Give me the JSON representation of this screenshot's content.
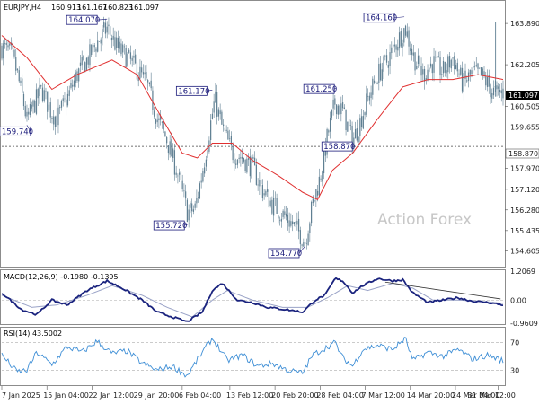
{
  "chart_data": {
    "type": "candlestick",
    "symbol_header": "EURJPY,H4",
    "ohlc": {
      "open": "160.913",
      "high": "161.167",
      "low": "160.823",
      "close": "161.097"
    },
    "current_price": "161.097",
    "support_level": "158.870",
    "watermark": "Action Forex",
    "colors": {
      "candle": "#5f7f92",
      "ma": "#e03030",
      "macd": "#1a237e",
      "rsi": "#3f8fd6",
      "callout": "#1a1a7a"
    },
    "price_axis": {
      "min": 154.0,
      "max": 164.7,
      "ticks": [
        "163.890",
        "162.205",
        "160.505",
        "159.655",
        "157.970",
        "157.120",
        "156.280",
        "155.435",
        "154.605"
      ]
    },
    "time_axis": {
      "range": [
        "7 Jan 2025",
        "31 Mar 12:00"
      ],
      "labels": [
        "7 Jan 2025",
        "15 Jan 04:00",
        "22 Jan 12:00",
        "29 Jan 20:00",
        "6 Feb 04:00",
        "13 Feb 12:00",
        "20 Feb 20:00",
        "28 Feb 04:00",
        "7 Mar 12:00",
        "14 Mar 20:00",
        "24 Mar 04:00",
        "31 Mar 12:00"
      ],
      "positions": [
        0,
        0.09,
        0.18,
        0.27,
        0.36,
        0.455,
        0.545,
        0.635,
        0.725,
        0.815,
        0.905,
        0.99
      ]
    },
    "swing_points": [
      {
        "label": "164.070",
        "t": 0.21,
        "price": 164.07,
        "kind": "high"
      },
      {
        "label": "159.740",
        "t": 0.05,
        "price": 159.74,
        "kind": "low"
      },
      {
        "label": "161.170",
        "t": 0.42,
        "price": 161.17,
        "kind": "high"
      },
      {
        "label": "155.720",
        "t": 0.375,
        "price": 155.72,
        "kind": "low"
      },
      {
        "label": "154.770",
        "t": 0.604,
        "price": 154.77,
        "kind": "low"
      },
      {
        "label": "161.250",
        "t": 0.667,
        "price": 161.25,
        "kind": "high"
      },
      {
        "label": "158.870",
        "t": 0.703,
        "price": 158.87,
        "kind": "low"
      },
      {
        "label": "164.160",
        "t": 0.803,
        "price": 164.16,
        "kind": "high"
      }
    ],
    "price_anchors": [
      [
        0.0,
        162.9
      ],
      [
        0.01,
        162.8
      ],
      [
        0.02,
        162.6
      ],
      [
        0.03,
        161.9
      ],
      [
        0.045,
        160.5
      ],
      [
        0.05,
        159.9
      ],
      [
        0.065,
        160.6
      ],
      [
        0.08,
        161.2
      ],
      [
        0.095,
        160.4
      ],
      [
        0.11,
        160.0
      ],
      [
        0.13,
        160.8
      ],
      [
        0.15,
        161.8
      ],
      [
        0.17,
        162.4
      ],
      [
        0.19,
        163.1
      ],
      [
        0.21,
        163.7
      ],
      [
        0.23,
        162.9
      ],
      [
        0.25,
        162.5
      ],
      [
        0.27,
        162.0
      ],
      [
        0.29,
        161.4
      ],
      [
        0.31,
        160.0
      ],
      [
        0.33,
        159.1
      ],
      [
        0.35,
        157.8
      ],
      [
        0.37,
        156.2
      ],
      [
        0.385,
        156.3
      ],
      [
        0.4,
        157.8
      ],
      [
        0.415,
        159.6
      ],
      [
        0.425,
        160.8
      ],
      [
        0.44,
        159.6
      ],
      [
        0.46,
        158.6
      ],
      [
        0.48,
        158.4
      ],
      [
        0.5,
        158.0
      ],
      [
        0.52,
        157.1
      ],
      [
        0.54,
        156.5
      ],
      [
        0.56,
        156.1
      ],
      [
        0.58,
        155.7
      ],
      [
        0.595,
        155.3
      ],
      [
        0.605,
        155.0
      ],
      [
        0.62,
        156.5
      ],
      [
        0.635,
        157.6
      ],
      [
        0.65,
        159.3
      ],
      [
        0.665,
        160.7
      ],
      [
        0.68,
        160.3
      ],
      [
        0.7,
        159.1
      ],
      [
        0.71,
        159.6
      ],
      [
        0.73,
        160.8
      ],
      [
        0.75,
        161.8
      ],
      [
        0.77,
        162.4
      ],
      [
        0.79,
        163.2
      ],
      [
        0.805,
        163.7
      ],
      [
        0.82,
        162.6
      ],
      [
        0.84,
        161.8
      ],
      [
        0.86,
        162.3
      ],
      [
        0.88,
        161.9
      ],
      [
        0.9,
        162.5
      ],
      [
        0.92,
        161.4
      ],
      [
        0.94,
        161.9
      ],
      [
        0.96,
        161.7
      ],
      [
        0.975,
        161.2
      ],
      [
        0.985,
        161.0
      ],
      [
        1.0,
        161.1
      ]
    ],
    "ma_anchors": [
      [
        0.0,
        163.4
      ],
      [
        0.05,
        162.5
      ],
      [
        0.1,
        161.2
      ],
      [
        0.15,
        161.8
      ],
      [
        0.22,
        162.4
      ],
      [
        0.27,
        161.8
      ],
      [
        0.32,
        160.0
      ],
      [
        0.36,
        158.6
      ],
      [
        0.39,
        158.4
      ],
      [
        0.42,
        159.0
      ],
      [
        0.46,
        159.0
      ],
      [
        0.5,
        158.3
      ],
      [
        0.55,
        157.7
      ],
      [
        0.6,
        157.0
      ],
      [
        0.63,
        156.7
      ],
      [
        0.66,
        157.9
      ],
      [
        0.7,
        158.6
      ],
      [
        0.75,
        160.0
      ],
      [
        0.8,
        161.3
      ],
      [
        0.85,
        161.6
      ],
      [
        0.9,
        161.6
      ],
      [
        0.95,
        161.8
      ],
      [
        1.0,
        161.6
      ]
    ],
    "macd": {
      "label": "MACD(12,26,9) -0.1980 -0.1395",
      "ticks": [
        "1.2069",
        "0.00",
        "-0.9609"
      ],
      "range": [
        -0.9609,
        1.2069
      ],
      "anchors": [
        [
          0.0,
          0.3
        ],
        [
          0.04,
          -0.4
        ],
        [
          0.07,
          -0.6
        ],
        [
          0.1,
          0.0
        ],
        [
          0.13,
          -0.2
        ],
        [
          0.17,
          0.4
        ],
        [
          0.21,
          0.8
        ],
        [
          0.24,
          0.5
        ],
        [
          0.28,
          0.0
        ],
        [
          0.31,
          -0.5
        ],
        [
          0.34,
          -0.7
        ],
        [
          0.37,
          -0.9
        ],
        [
          0.4,
          -0.5
        ],
        [
          0.42,
          0.4
        ],
        [
          0.44,
          0.7
        ],
        [
          0.47,
          0.0
        ],
        [
          0.5,
          -0.1
        ],
        [
          0.53,
          -0.3
        ],
        [
          0.57,
          -0.4
        ],
        [
          0.6,
          -0.5
        ],
        [
          0.625,
          0.0
        ],
        [
          0.645,
          0.2
        ],
        [
          0.665,
          0.9
        ],
        [
          0.68,
          0.8
        ],
        [
          0.7,
          0.3
        ],
        [
          0.72,
          0.6
        ],
        [
          0.75,
          0.9
        ],
        [
          0.78,
          0.8
        ],
        [
          0.8,
          0.85
        ],
        [
          0.82,
          0.3
        ],
        [
          0.85,
          -0.1
        ],
        [
          0.88,
          0.0
        ],
        [
          0.91,
          0.1
        ],
        [
          0.94,
          -0.05
        ],
        [
          0.97,
          -0.1
        ],
        [
          1.0,
          -0.2
        ]
      ],
      "signal_anchors": [
        [
          0.0,
          0.2
        ],
        [
          0.06,
          -0.3
        ],
        [
          0.11,
          -0.2
        ],
        [
          0.17,
          0.2
        ],
        [
          0.22,
          0.6
        ],
        [
          0.28,
          0.2
        ],
        [
          0.33,
          -0.3
        ],
        [
          0.38,
          -0.7
        ],
        [
          0.42,
          0.0
        ],
        [
          0.45,
          0.4
        ],
        [
          0.5,
          0.0
        ],
        [
          0.56,
          -0.3
        ],
        [
          0.61,
          -0.3
        ],
        [
          0.65,
          0.1
        ],
        [
          0.69,
          0.6
        ],
        [
          0.73,
          0.4
        ],
        [
          0.78,
          0.7
        ],
        [
          0.82,
          0.5
        ],
        [
          0.86,
          0.0
        ],
        [
          0.91,
          0.0
        ],
        [
          0.96,
          -0.05
        ],
        [
          1.0,
          -0.14
        ]
      ],
      "trendline": [
        [
          0.765,
          0.75
        ],
        [
          0.995,
          0.05
        ]
      ]
    },
    "rsi": {
      "label": "RSI(14) 43.5002",
      "ticks": [
        "70",
        "30"
      ],
      "range": [
        10,
        90
      ],
      "anchors": [
        [
          0.0,
          52
        ],
        [
          0.03,
          28
        ],
        [
          0.05,
          30
        ],
        [
          0.07,
          56
        ],
        [
          0.1,
          38
        ],
        [
          0.13,
          64
        ],
        [
          0.16,
          56
        ],
        [
          0.19,
          72
        ],
        [
          0.22,
          54
        ],
        [
          0.25,
          58
        ],
        [
          0.28,
          40
        ],
        [
          0.31,
          30
        ],
        [
          0.34,
          36
        ],
        [
          0.37,
          22
        ],
        [
          0.4,
          56
        ],
        [
          0.42,
          76
        ],
        [
          0.45,
          44
        ],
        [
          0.48,
          52
        ],
        [
          0.51,
          36
        ],
        [
          0.54,
          40
        ],
        [
          0.57,
          30
        ],
        [
          0.6,
          26
        ],
        [
          0.62,
          52
        ],
        [
          0.645,
          62
        ],
        [
          0.665,
          70
        ],
        [
          0.68,
          48
        ],
        [
          0.7,
          36
        ],
        [
          0.72,
          60
        ],
        [
          0.75,
          66
        ],
        [
          0.78,
          60
        ],
        [
          0.805,
          76
        ],
        [
          0.82,
          44
        ],
        [
          0.85,
          56
        ],
        [
          0.88,
          50
        ],
        [
          0.91,
          60
        ],
        [
          0.94,
          46
        ],
        [
          0.97,
          52
        ],
        [
          1.0,
          43.5
        ]
      ]
    }
  }
}
